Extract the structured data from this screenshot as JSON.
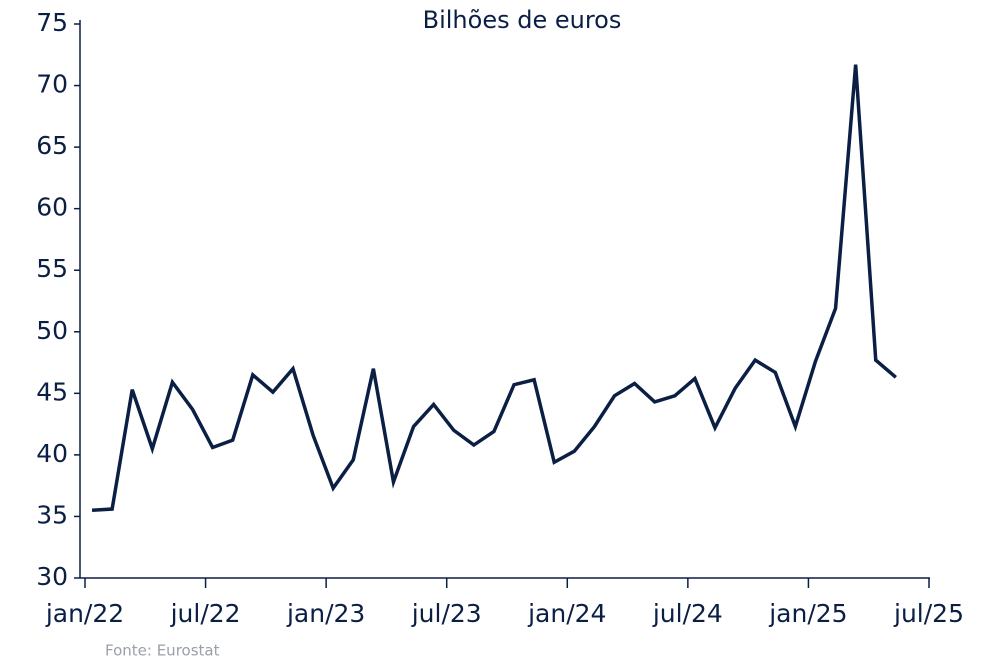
{
  "chart_data": {
    "type": "line",
    "subtitle": "Bilhões de euros",
    "source": "Fonte: Eurostat",
    "x": [
      "2022-01",
      "2022-02",
      "2022-03",
      "2022-04",
      "2022-05",
      "2022-06",
      "2022-07",
      "2022-08",
      "2022-09",
      "2022-10",
      "2022-11",
      "2022-12",
      "2023-01",
      "2023-02",
      "2023-03",
      "2023-04",
      "2023-05",
      "2023-06",
      "2023-07",
      "2023-08",
      "2023-09",
      "2023-10",
      "2023-11",
      "2023-12",
      "2024-01",
      "2024-02",
      "2024-03",
      "2024-04",
      "2024-05",
      "2024-06",
      "2024-07",
      "2024-08",
      "2024-09",
      "2024-10",
      "2024-11",
      "2024-12",
      "2025-01",
      "2025-02",
      "2025-03",
      "2025-04",
      "2025-05"
    ],
    "series": [
      {
        "color": "#0b1f45",
        "values": [
          35.5,
          35.6,
          45.3,
          40.5,
          45.9,
          43.7,
          40.6,
          41.2,
          46.5,
          45.1,
          47.0,
          41.6,
          37.3,
          39.6,
          47.0,
          37.8,
          42.3,
          44.1,
          42.0,
          40.8,
          41.9,
          45.7,
          46.1,
          39.4,
          40.3,
          42.3,
          44.8,
          45.8,
          44.3,
          44.8,
          46.2,
          42.2,
          45.4,
          47.7,
          46.7,
          42.3,
          47.6,
          51.9,
          71.7,
          47.7,
          46.3
        ]
      }
    ],
    "xlim": [
      "2022-01",
      "2025-07"
    ],
    "xticks": [
      {
        "value": "2022-01",
        "label": "jan/22"
      },
      {
        "value": "2022-07",
        "label": "jul/22"
      },
      {
        "value": "2023-01",
        "label": "jan/23"
      },
      {
        "value": "2023-07",
        "label": "jul/23"
      },
      {
        "value": "2024-01",
        "label": "jan/24"
      },
      {
        "value": "2024-07",
        "label": "jul/24"
      },
      {
        "value": "2025-01",
        "label": "jan/25"
      },
      {
        "value": "2025-07",
        "label": "jul/25"
      }
    ],
    "ylim": [
      30,
      75
    ],
    "yticks": [
      30,
      35,
      40,
      45,
      50,
      55,
      60,
      65,
      70,
      75
    ]
  }
}
